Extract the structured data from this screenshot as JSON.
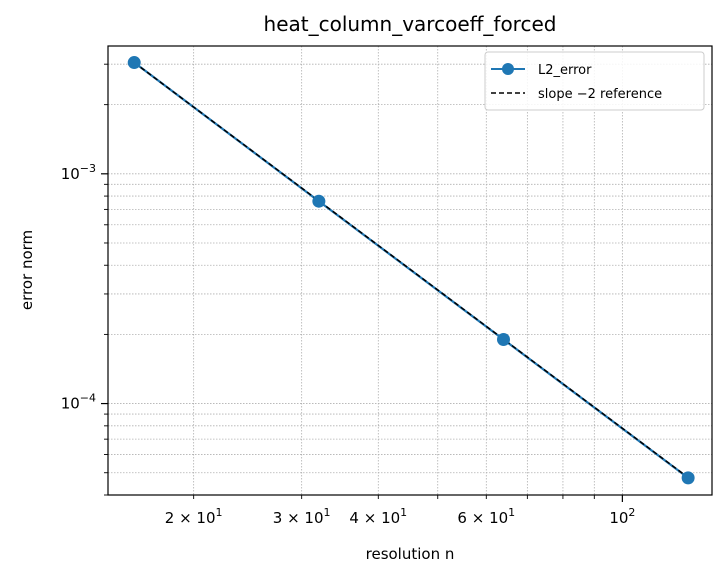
{
  "chart_data": {
    "type": "line",
    "title": "heat_column_varcoeff_forced",
    "xlabel": "resolution n",
    "ylabel": "error norm",
    "xscale": "log",
    "yscale": "log",
    "xlim": [
      14.5,
      140
    ],
    "ylim": [
      4e-05,
      0.0036
    ],
    "grid": true,
    "legend_position": "top-right",
    "x_tick_labels": [
      {
        "value": 20,
        "base": "2 × 10",
        "exp": "1"
      },
      {
        "value": 30,
        "base": "3 × 10",
        "exp": "1"
      },
      {
        "value": 40,
        "base": "4 × 10",
        "exp": "1"
      },
      {
        "value": 60,
        "base": "6 × 10",
        "exp": "1"
      },
      {
        "value": 100,
        "base": "10",
        "exp": "2"
      }
    ],
    "y_tick_labels": [
      {
        "value": 0.0001,
        "base": "10",
        "exp": "−4"
      },
      {
        "value": 0.001,
        "base": "10",
        "exp": "−3"
      }
    ],
    "series": [
      {
        "name": "L2_error",
        "color": "#1f77b4",
        "style": "solid-marker",
        "x": [
          16,
          32,
          64,
          128
        ],
        "y": [
          0.00305,
          0.00076,
          0.00019,
          4.75e-05
        ]
      },
      {
        "name": "slope −2 reference",
        "color": "#000000",
        "style": "dashed",
        "x": [
          16,
          32,
          64,
          128
        ],
        "y": [
          0.00305,
          0.0007625,
          0.000190625,
          4.765625e-05
        ]
      }
    ]
  }
}
